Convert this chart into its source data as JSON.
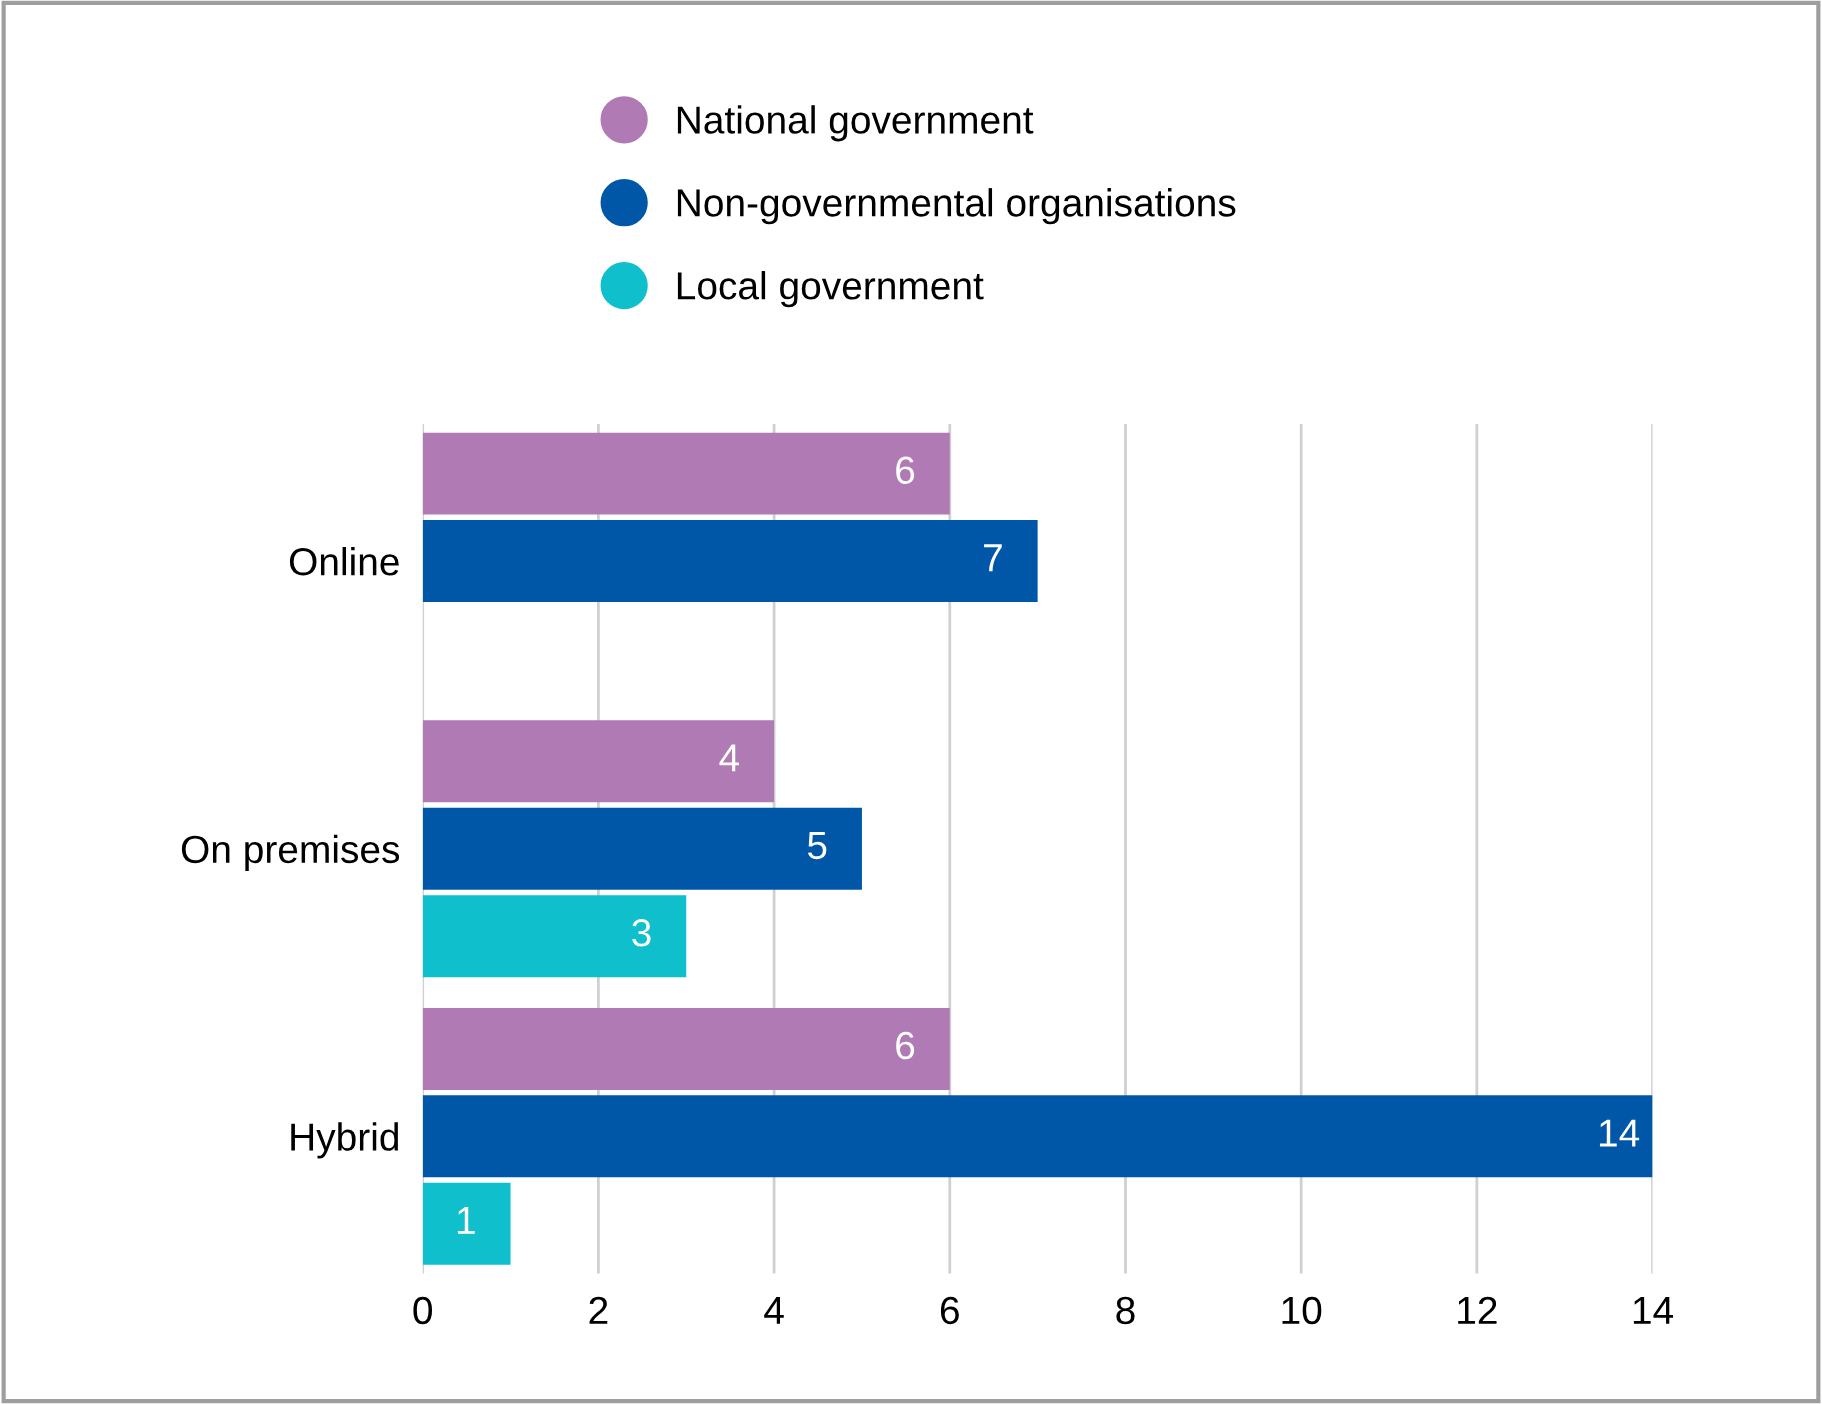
{
  "chart_data": {
    "type": "bar",
    "orientation": "horizontal",
    "categories": [
      "Online",
      "On premises",
      "Hybrid"
    ],
    "series": [
      {
        "name": "National government",
        "color": "#b07ab4",
        "values": [
          6,
          4,
          6
        ]
      },
      {
        "name": "Non-governmental organisations",
        "color": "#0057a8",
        "values": [
          7,
          5,
          14
        ]
      },
      {
        "name": "Local government",
        "color": "#10bfcc",
        "values": [
          null,
          3,
          1
        ]
      }
    ],
    "xlim": [
      0,
      14
    ],
    "xticks": [
      0,
      2,
      4,
      6,
      8,
      10,
      12,
      14
    ],
    "grid": "x",
    "legend": "top",
    "data_labels": true
  }
}
